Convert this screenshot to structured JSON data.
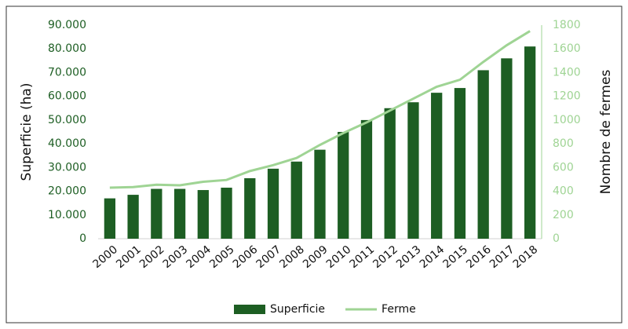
{
  "chart_data": {
    "type": "bar",
    "categories": [
      "2000",
      "2001",
      "2002",
      "2003",
      "2004",
      "2005",
      "2006",
      "2007",
      "2008",
      "2009",
      "2010",
      "2011",
      "2012",
      "2013",
      "2014",
      "2015",
      "2016",
      "2017",
      "2018"
    ],
    "series": [
      {
        "name": "Superficie",
        "type": "bar",
        "color": "#1d5e23",
        "values": [
          17000,
          18500,
          21000,
          21000,
          20500,
          21500,
          25500,
          29500,
          32500,
          37500,
          45000,
          50000,
          55000,
          57500,
          61500,
          63500,
          71000,
          76000,
          81000
        ]
      },
      {
        "name": "Ferme",
        "type": "line",
        "axis": "y2",
        "color": "#9fd494",
        "values": [
          430,
          435,
          455,
          450,
          480,
          495,
          570,
          620,
          680,
          790,
          890,
          980,
          1080,
          1180,
          1280,
          1340,
          1490,
          1630,
          1750
        ]
      }
    ],
    "ylabel": "Superficie (ha)",
    "y2label": "Nombre de fermes",
    "ylim": [
      0,
      90000
    ],
    "yticks": [
      0,
      {
        "value": 10000,
        "label": "10.000"
      },
      {
        "value": 20000,
        "label": "20.000"
      },
      {
        "value": 30000,
        "label": "30.000"
      },
      {
        "value": 40000,
        "label": "40.000"
      },
      {
        "value": 50000,
        "label": "50.000"
      },
      {
        "value": 60000,
        "label": "60.000"
      },
      {
        "value": 70000,
        "label": "70.000"
      },
      {
        "value": 80000,
        "label": "80.000"
      },
      {
        "value": 90000,
        "label": "90.000"
      }
    ],
    "y2lim": [
      0,
      1800
    ],
    "y2ticks": [
      0,
      200,
      400,
      600,
      800,
      1000,
      1200,
      1400,
      1600,
      1800
    ],
    "legend": "bottom"
  }
}
